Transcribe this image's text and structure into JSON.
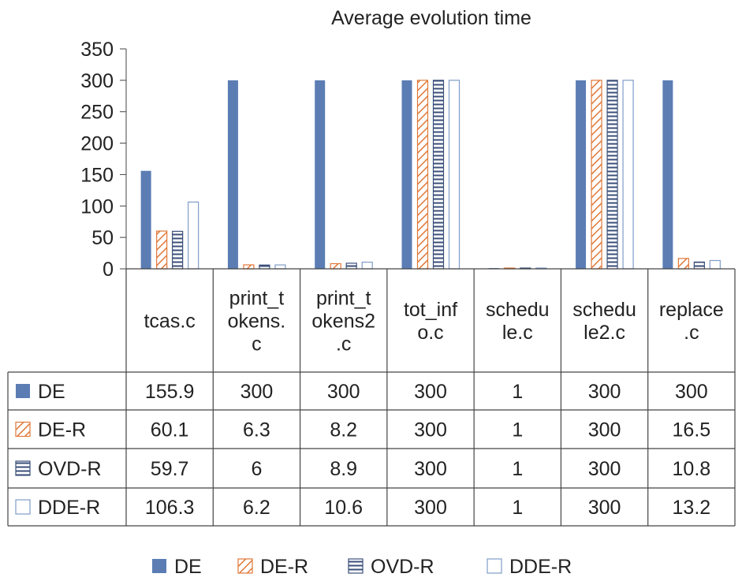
{
  "chart_data": {
    "type": "bar",
    "title": "Average evolution time",
    "xlabel": "",
    "ylabel": "",
    "ylim": [
      0,
      350
    ],
    "yticks": [
      0,
      50,
      100,
      150,
      200,
      250,
      300,
      350
    ],
    "grid": false,
    "legend_position": "bottom",
    "categories": [
      [
        "tcas.c"
      ],
      [
        "print_t",
        "okens.",
        "c"
      ],
      [
        "print_t",
        "okens2",
        ".c"
      ],
      [
        "tot_inf",
        "o.c"
      ],
      [
        "schedu",
        "le.c"
      ],
      [
        "schedu",
        "le2.c"
      ],
      [
        "replace",
        ".c"
      ]
    ],
    "series": [
      {
        "name": "DE",
        "pattern": "solid",
        "color": "#5b7db4",
        "values": [
          155.9,
          300,
          300,
          300,
          1,
          300,
          300
        ],
        "labels": [
          "155.9",
          "300",
          "300",
          "300",
          "1",
          "300",
          "300"
        ]
      },
      {
        "name": "DE-R",
        "pattern": "diagonal",
        "color": "#e07838",
        "values": [
          60.1,
          6.3,
          8.2,
          300,
          1,
          300,
          16.5
        ],
        "labels": [
          "60.1",
          "6.3",
          "8.2",
          "300",
          "1",
          "300",
          "16.5"
        ]
      },
      {
        "name": "OVD-R",
        "pattern": "horizontal",
        "color": "#3b4f7a",
        "values": [
          59.7,
          6,
          8.9,
          300,
          1,
          300,
          10.8
        ],
        "labels": [
          "59.7",
          "6",
          "8.9",
          "300",
          "1",
          "300",
          "10.8"
        ]
      },
      {
        "name": "DDE-R",
        "pattern": "hollow",
        "color": "#7f9cc8",
        "values": [
          106.3,
          6.2,
          10.6,
          300,
          1,
          300,
          13.2
        ],
        "labels": [
          "106.3",
          "6.2",
          "10.6",
          "300",
          "1",
          "300",
          "13.2"
        ]
      }
    ]
  }
}
